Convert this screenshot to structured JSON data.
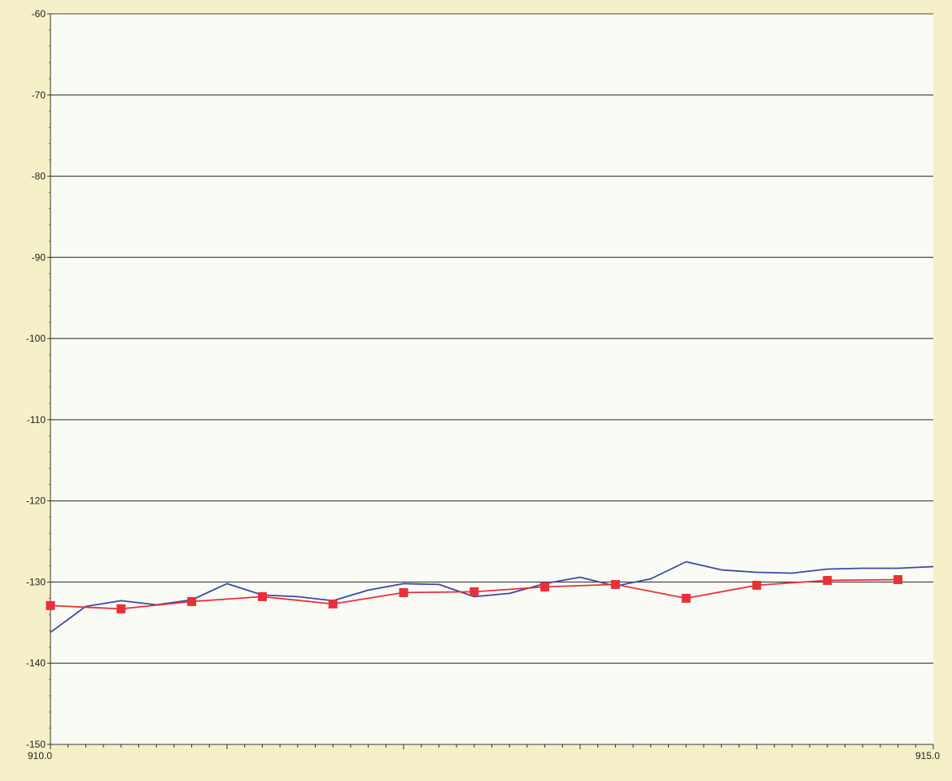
{
  "chart_data": {
    "type": "line",
    "title": "",
    "xlabel": "",
    "ylabel": "",
    "xlim": [
      910.0,
      915.0
    ],
    "ylim": [
      -150,
      -60
    ],
    "grid": true,
    "x_tick_labels": [
      "910.0",
      "915.0"
    ],
    "y_ticks": [
      -60,
      -70,
      -80,
      -90,
      -100,
      -110,
      -120,
      -130,
      -140,
      -150
    ],
    "y_tick_labels": [
      "-60",
      "-70",
      "-80",
      "-90",
      "-100",
      "-110",
      "-120",
      "-130",
      "-140",
      "-150"
    ],
    "series": [
      {
        "color": "#3a4aa8",
        "marker": "none",
        "points": [
          [
            910.0,
            -136.2
          ],
          [
            910.2,
            -133.0
          ],
          [
            910.4,
            -132.3
          ],
          [
            910.6,
            -132.8
          ],
          [
            910.8,
            -132.2
          ],
          [
            911.0,
            -130.2
          ],
          [
            911.2,
            -131.6
          ],
          [
            911.4,
            -131.8
          ],
          [
            911.6,
            -132.3
          ],
          [
            911.8,
            -131.0
          ],
          [
            912.0,
            -130.2
          ],
          [
            912.2,
            -130.3
          ],
          [
            912.4,
            -131.8
          ],
          [
            912.6,
            -131.4
          ],
          [
            912.8,
            -130.2
          ],
          [
            913.0,
            -129.4
          ],
          [
            913.2,
            -130.5
          ],
          [
            913.4,
            -129.6
          ],
          [
            913.6,
            -127.5
          ],
          [
            913.8,
            -128.5
          ],
          [
            914.0,
            -128.8
          ],
          [
            914.2,
            -128.9
          ],
          [
            914.4,
            -128.4
          ],
          [
            914.6,
            -128.3
          ],
          [
            914.8,
            -128.3
          ],
          [
            915.0,
            -128.1
          ]
        ]
      },
      {
        "color": "#e8303a",
        "marker": "square",
        "points": [
          [
            910.0,
            -132.9
          ],
          [
            910.4,
            -133.3
          ],
          [
            910.8,
            -132.4
          ],
          [
            911.2,
            -131.8
          ],
          [
            911.6,
            -132.7
          ],
          [
            912.0,
            -131.3
          ],
          [
            912.4,
            -131.2
          ],
          [
            912.8,
            -130.6
          ],
          [
            913.2,
            -130.3
          ],
          [
            913.6,
            -132.0
          ],
          [
            914.0,
            -130.4
          ],
          [
            914.4,
            -129.8
          ],
          [
            914.8,
            -129.7
          ]
        ]
      }
    ]
  }
}
